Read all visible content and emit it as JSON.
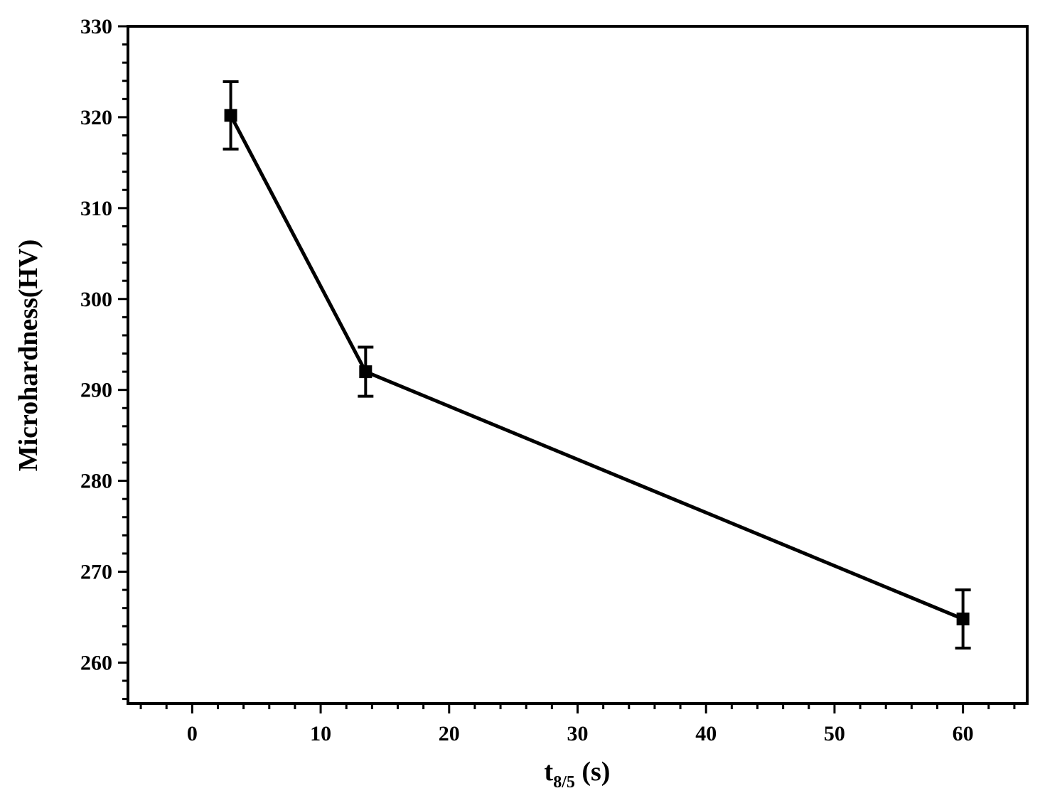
{
  "chart_data": {
    "type": "line",
    "xlabel": {
      "main": "t",
      "sub": "8/5",
      "suffix": " (s)"
    },
    "ylabel": "Microhardness(HV)",
    "xlim": [
      -5,
      65
    ],
    "ylim": [
      255.5,
      330
    ],
    "x_ticks": [
      0,
      10,
      20,
      30,
      40,
      50,
      60
    ],
    "y_ticks": [
      260,
      270,
      280,
      290,
      300,
      310,
      320,
      330
    ],
    "grid": false,
    "legend": "none",
    "series": [
      {
        "marker": "square",
        "color": "#000000",
        "points": [
          {
            "x": 3,
            "y": 320.2,
            "yerr": 3.7
          },
          {
            "x": 13.5,
            "y": 292.0,
            "yerr": 2.7
          },
          {
            "x": 60,
            "y": 264.8,
            "yerr": 3.2
          }
        ]
      }
    ]
  }
}
